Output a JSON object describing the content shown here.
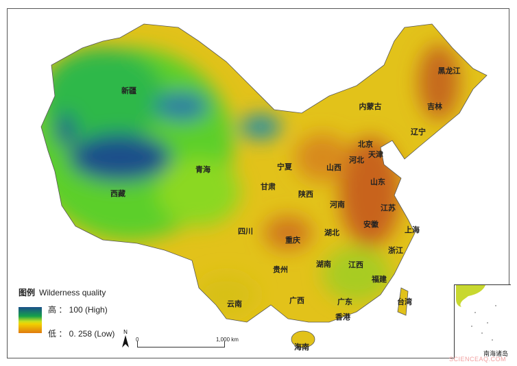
{
  "legend": {
    "title_cn": "图例",
    "title_en": "Wilderness quality",
    "high": "高 ： 100  (High)",
    "low": "低 ： 0. 258 (Low)",
    "high_value": 100,
    "low_value": 0.258,
    "colors": [
      "#1a4f8a",
      "#16a04a",
      "#c8e020",
      "#f2d000",
      "#e07a10"
    ]
  },
  "north_arrow": "N",
  "scale_bar": {
    "start": "0",
    "end": "1,000 km"
  },
  "inset_label": "南海诸岛",
  "watermark": "SCIENCEAQ.COM",
  "provinces": [
    "新疆",
    "西藏",
    "青海",
    "甘肃",
    "宁夏",
    "内蒙古",
    "黑龙江",
    "吉林",
    "辽宁",
    "北京",
    "天津",
    "河北",
    "山西",
    "陕西",
    "山东",
    "河南",
    "江苏",
    "安徽",
    "上海",
    "湖北",
    "四川",
    "重庆",
    "浙江",
    "贵州",
    "湖南",
    "江西",
    "福建",
    "云南",
    "广西",
    "广东",
    "香港",
    "台湾",
    "海南"
  ]
}
